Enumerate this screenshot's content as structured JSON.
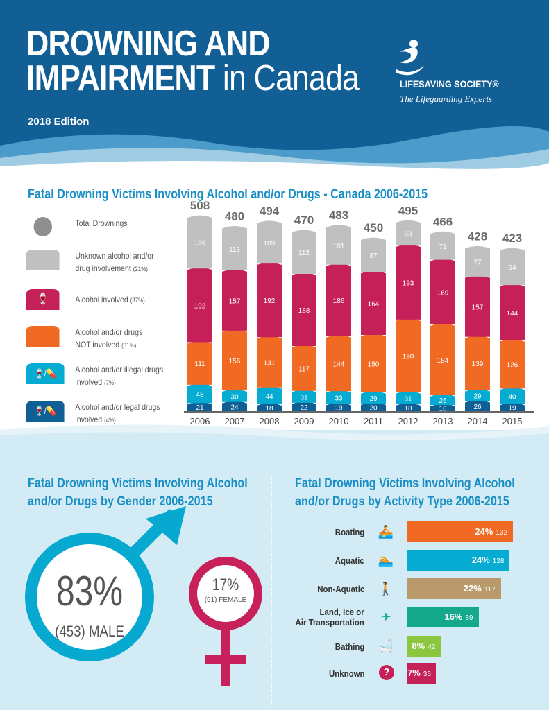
{
  "header": {
    "title_line1": "DROWNING AND",
    "title_line2_bold": "IMPAIRMENT",
    "title_line2_thin": " in Canada",
    "edition": "2018 Edition",
    "org_name": "LIFESAVING SOCIETY®",
    "org_tagline": "The Lifeguarding Experts"
  },
  "chart_data": {
    "type": "bar",
    "stacked": true,
    "title": "Fatal Drowning Victims Involving Alcohol and/or Drugs - Canada 2006-2015",
    "categories": [
      "2006",
      "2007",
      "2008",
      "2009",
      "2010",
      "2011",
      "2012",
      "2013",
      "2014",
      "2015"
    ],
    "totals": [
      508,
      480,
      494,
      470,
      483,
      450,
      495,
      466,
      428,
      423
    ],
    "series": [
      {
        "name": "Alcohol and/or legal drugs involved",
        "pct": "(4%)",
        "color": "#0f5f95",
        "values": [
          21,
          24,
          18,
          22,
          19,
          20,
          18,
          16,
          26,
          19
        ]
      },
      {
        "name": "Alcohol and/or illegal drugs involved",
        "pct": "(7%)",
        "color": "#05abd1",
        "values": [
          48,
          30,
          44,
          31,
          33,
          29,
          31,
          26,
          29,
          40
        ]
      },
      {
        "name": "Alcohol and/or drugs NOT involved",
        "pct": "(31%)",
        "color": "#f06a24",
        "values": [
          111,
          156,
          131,
          117,
          144,
          150,
          190,
          184,
          139,
          126
        ]
      },
      {
        "name": "Alcohol involved",
        "pct": "(37%)",
        "color": "#c62058",
        "values": [
          192,
          157,
          192,
          188,
          186,
          164,
          193,
          169,
          157,
          144
        ]
      },
      {
        "name": "Unknown alcohol and/or drug involvement",
        "pct": "(21%)",
        "color": "#c0c0c0",
        "values": [
          136,
          113,
          109,
          112,
          101,
          87,
          63,
          71,
          77,
          94
        ]
      }
    ],
    "legend": {
      "total": "Total  Drownings",
      "unknown": "Unknown alcohol and/or",
      "unknown2": "drug involvement",
      "unknown_pct": "(21%)",
      "alcohol": "Alcohol involved",
      "alcohol_pct": "(37%)",
      "not1": "Alcohol and/or drugs",
      "not2": "NOT involved",
      "not_pct": "(31%)",
      "illegal1": "Alcohol and/or illegal drugs",
      "illegal2": "involved",
      "illegal_pct": "(7%)",
      "legal1": "Alcohol and/or legal drugs",
      "legal2": "involved",
      "legal_pct": "(4%)"
    }
  },
  "gender": {
    "title1": "Fatal Drowning Victims Involving Alcohol",
    "title2": "and/or Drugs by Gender 2006-2015",
    "male_pct": "83%",
    "male_label": "(453) MALE",
    "female_pct": "17%",
    "female_label": "(91) FEMALE"
  },
  "activity": {
    "title1": "Fatal Drowning Victims Involving Alcohol",
    "title2": "and/or Drugs by Activity Type 2006-2015",
    "rows": [
      {
        "label": "Boating",
        "pct": "24%",
        "count": 132,
        "color": "#f06a24",
        "icon": "boat-icon",
        "glyph": "🚣"
      },
      {
        "label": "Aquatic",
        "pct": "24%",
        "count": 128,
        "color": "#05abd1",
        "icon": "swimmer-icon",
        "glyph": "🏊"
      },
      {
        "label": "Non-Aquatic",
        "pct": "22%",
        "count": 117,
        "color": "#b89a6c",
        "icon": "hiker-icon",
        "glyph": "🚶"
      },
      {
        "label": "Land, Ice or",
        "label2": "Air Transportation",
        "pct": "16%",
        "count": 89,
        "color": "#15a98c",
        "icon": "airplane-icon",
        "glyph": "✈"
      },
      {
        "label": "Bathing",
        "pct": "8%",
        "count": 42,
        "color": "#8cc63f",
        "icon": "bathtub-icon",
        "glyph": "🛁"
      },
      {
        "label": "Unknown",
        "pct": "7%",
        "count": 36,
        "color": "#c62058",
        "icon": "question-icon",
        "glyph": "?"
      }
    ]
  }
}
